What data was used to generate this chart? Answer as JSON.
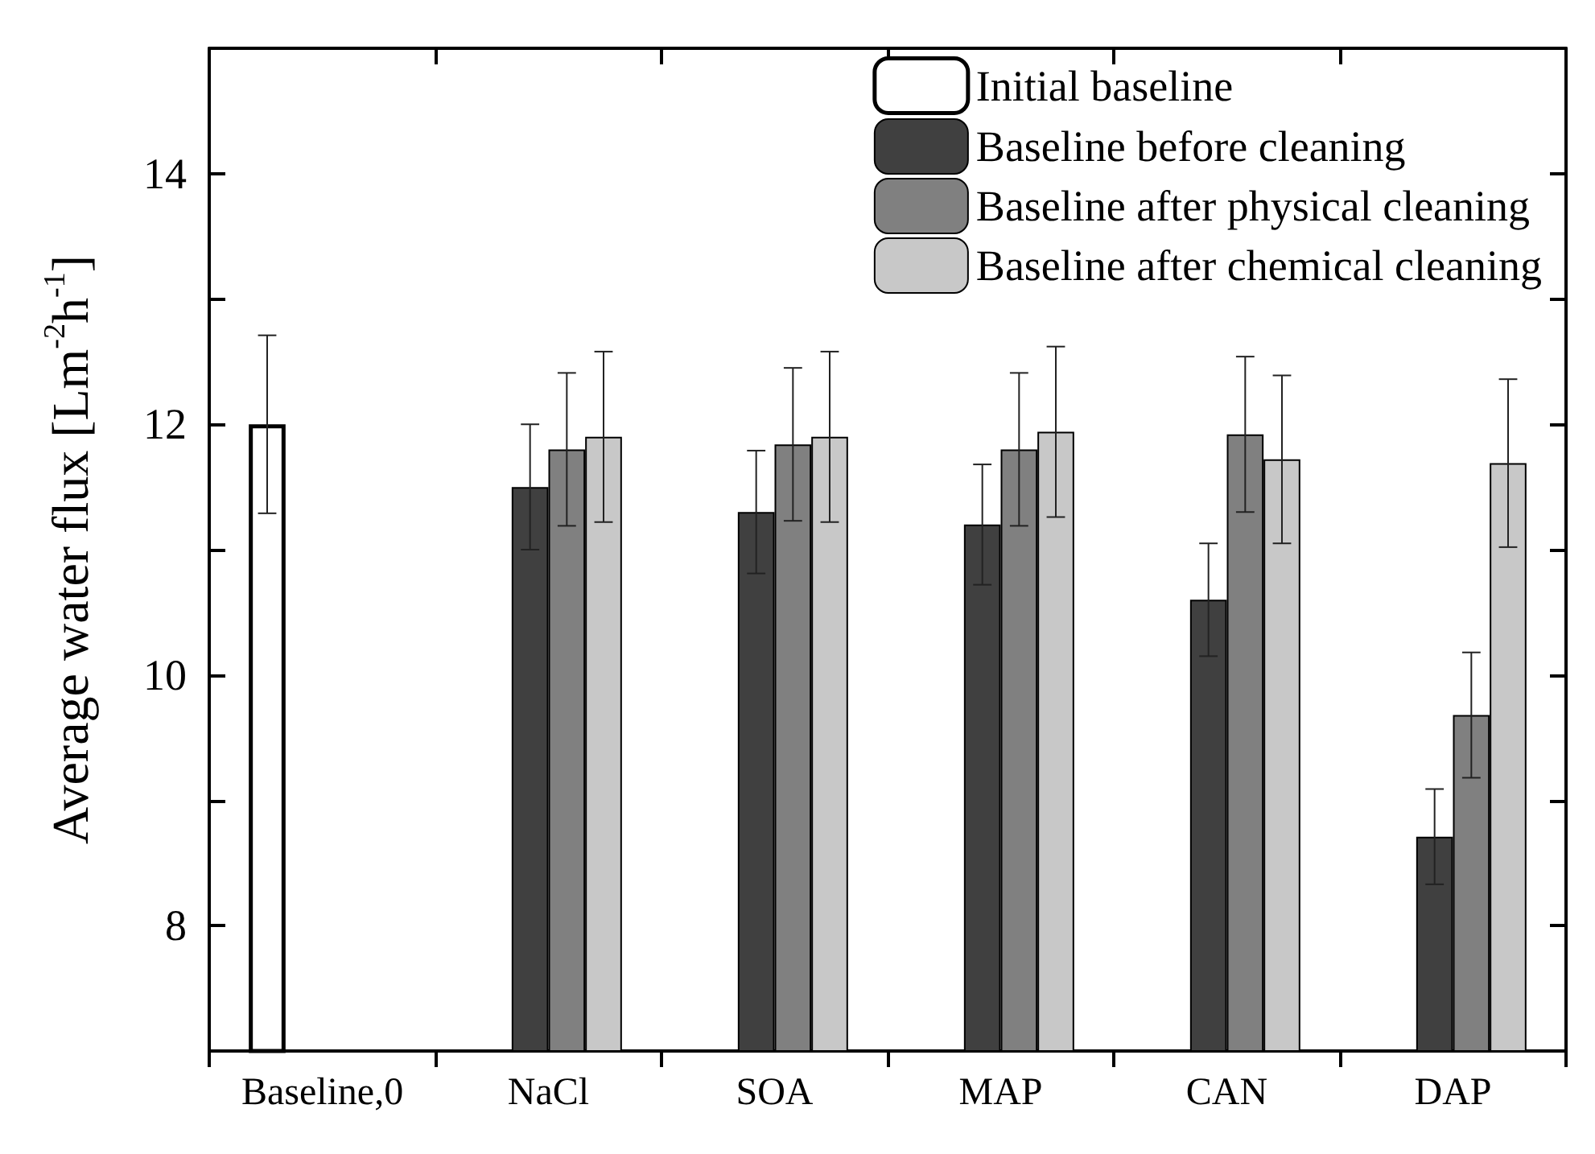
{
  "chart_data": {
    "type": "bar",
    "ylabel": "Average water flux [Lm$^{-2}$h$^{-1}$]",
    "categories": [
      "Baseline,0",
      "NaCl",
      "SOA",
      "MAP",
      "CAN",
      "DAP"
    ],
    "series": [
      {
        "name": "Initial baseline",
        "color": "#ffffff",
        "values": [
          12.0,
          null,
          null,
          null,
          null,
          null
        ],
        "errors": [
          0.71,
          null,
          null,
          null,
          null,
          null
        ]
      },
      {
        "name": "Baseline before cleaning",
        "color": "#404040",
        "values": [
          null,
          11.5,
          11.3,
          11.2,
          10.6,
          8.71
        ],
        "errors": [
          null,
          0.5,
          0.49,
          0.48,
          0.45,
          0.38
        ]
      },
      {
        "name": "Baseline after physical cleaning",
        "color": "#808080",
        "values": [
          null,
          11.8,
          11.84,
          11.8,
          11.92,
          9.68
        ],
        "errors": [
          null,
          0.61,
          0.61,
          0.61,
          0.62,
          0.5
        ]
      },
      {
        "name": "Baseline after chemical cleaning",
        "color": "#c8c8c8",
        "values": [
          null,
          11.9,
          11.9,
          11.94,
          11.72,
          11.69
        ],
        "errors": [
          null,
          0.68,
          0.68,
          0.68,
          0.67,
          0.67
        ]
      }
    ],
    "ylim": [
      7,
      15
    ],
    "yticks": [
      8,
      {
        "value": 9,
        "label": null
      },
      10,
      {
        "value": 11,
        "label": null
      },
      12,
      {
        "value": 13,
        "label": null
      },
      14
    ],
    "legend": "top right",
    "grid": false
  }
}
